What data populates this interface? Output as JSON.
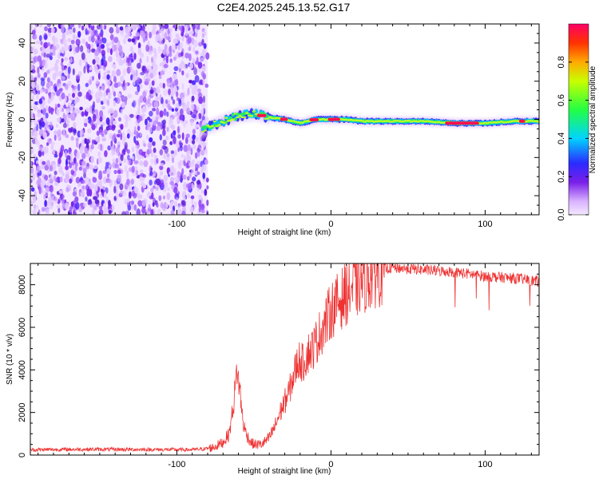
{
  "title": "C2E4.2025.245.13.52.G17",
  "colors": {
    "snr_line": "#ee3333",
    "ridge_core": "#ff2244",
    "noise": "#7722ee",
    "axis": "#000000"
  },
  "chart_data": [
    {
      "type": "heatmap",
      "xlabel": "Height of straight line (km)",
      "ylabel": "Frequency (Hz)",
      "xlim": [
        -195,
        135
      ],
      "ylim": [
        -50,
        50
      ],
      "xticks": [
        -100,
        0,
        100
      ],
      "xtick_labels": [
        "-100",
        "0",
        "100"
      ],
      "yticks": [
        -40,
        -20,
        0,
        20,
        40
      ],
      "ytick_labels": [
        "-40",
        "-20",
        "0",
        "20",
        "40"
      ],
      "noise_region_x": [
        -195,
        -80
      ],
      "ridge": {
        "x": [
          -85,
          -80,
          -70,
          -60,
          -50,
          -45,
          -40,
          -30,
          -20,
          -10,
          0,
          10,
          20,
          40,
          60,
          80,
          100,
          120,
          135
        ],
        "y": [
          -6,
          -4,
          -1,
          2,
          3,
          2,
          1,
          0,
          -2,
          0,
          0,
          0,
          -1,
          -1,
          -1,
          -2,
          -2,
          -1,
          -1
        ]
      },
      "colorbar": {
        "label": "Normalized spectral amplitude",
        "ticks": [
          0.0,
          0.2,
          0.4,
          0.6,
          0.8
        ],
        "tick_labels": [
          "0.0",
          "0.2",
          "0.4",
          "0.6",
          "0.8"
        ],
        "range": [
          0,
          1
        ]
      }
    },
    {
      "type": "line",
      "xlabel": "Height of straight line (km)",
      "ylabel": "SNR (10 * v/v)",
      "xlim": [
        -195,
        135
      ],
      "ylim": [
        0,
        9000
      ],
      "xticks": [
        -100,
        0,
        100
      ],
      "xtick_labels": [
        "-100",
        "0",
        "100"
      ],
      "yticks": [
        0,
        2000,
        4000,
        6000,
        8000
      ],
      "ytick_labels": [
        "0",
        "2000",
        "4000",
        "6000",
        "8000"
      ],
      "series": [
        {
          "name": "SNR",
          "x": [
            -195,
            -160,
            -120,
            -90,
            -80,
            -75,
            -70,
            -66,
            -63,
            -61,
            -59,
            -57,
            -55,
            -52,
            -50,
            -45,
            -40,
            -36,
            -33,
            -30,
            -27,
            -24,
            -21,
            -18,
            -15,
            -12,
            -9,
            -6,
            -3,
            0,
            5,
            10,
            15,
            20,
            25,
            30,
            35,
            40,
            50,
            60,
            70,
            80,
            90,
            100,
            110,
            120,
            130,
            135
          ],
          "y": [
            250,
            270,
            260,
            250,
            300,
            400,
            600,
            1000,
            2500,
            4000,
            3000,
            1500,
            1000,
            600,
            500,
            500,
            800,
            1400,
            2000,
            2500,
            3000,
            3800,
            4500,
            4300,
            4800,
            5000,
            5400,
            5900,
            6300,
            6800,
            7200,
            7600,
            7900,
            8200,
            8400,
            8600,
            8750,
            8800,
            8750,
            8700,
            8650,
            8600,
            8500,
            8400,
            8350,
            8300,
            8200,
            8150
          ]
        }
      ]
    }
  ]
}
